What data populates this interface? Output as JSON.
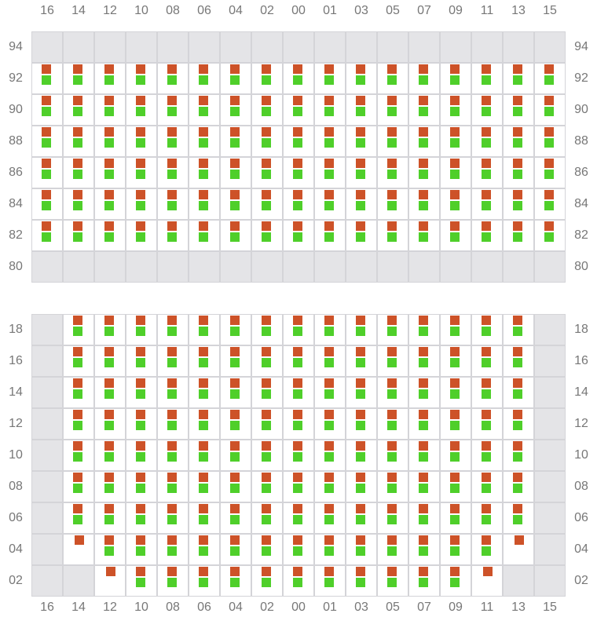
{
  "columns": [
    "16",
    "14",
    "12",
    "10",
    "08",
    "06",
    "04",
    "02",
    "00",
    "01",
    "03",
    "05",
    "07",
    "09",
    "11",
    "13",
    "15"
  ],
  "legend_codes": {
    "x": "unavailable",
    "b": "orange and green",
    "o": "orange only"
  },
  "colors": {
    "orange": "#cd5228",
    "green": "#4fcf2a",
    "unavailable": "#e4e4e7",
    "border": "#d4d4d8"
  },
  "sections": [
    {
      "rows": [
        {
          "label": "94",
          "cells": "xxxxxxxxxxxxxxxxx"
        },
        {
          "label": "92",
          "cells": "bbbbbbbbbbbbbbbbb"
        },
        {
          "label": "90",
          "cells": "bbbbbbbbbbbbbbbbb"
        },
        {
          "label": "88",
          "cells": "bbbbbbbbbbbbbbbbb"
        },
        {
          "label": "86",
          "cells": "bbbbbbbbbbbbbbbbb"
        },
        {
          "label": "84",
          "cells": "bbbbbbbbbbbbbbbbb"
        },
        {
          "label": "82",
          "cells": "bbbbbbbbbbbbbbbbb"
        },
        {
          "label": "80",
          "cells": "xxxxxxxxxxxxxxxxx"
        }
      ]
    },
    {
      "rows": [
        {
          "label": "18",
          "cells": "xbbbbbbbbbbbbbbbx"
        },
        {
          "label": "16",
          "cells": "xbbbbbbbbbbbbbbbx"
        },
        {
          "label": "14",
          "cells": "xbbbbbbbbbbbbbbbx"
        },
        {
          "label": "12",
          "cells": "xbbbbbbbbbbbbbbbx"
        },
        {
          "label": "10",
          "cells": "xbbbbbbbbbbbbbbbx"
        },
        {
          "label": "08",
          "cells": "xbbbbbbbbbbbbbbbx"
        },
        {
          "label": "06",
          "cells": "xbbbbbbbbbbbbbbbx"
        },
        {
          "label": "04",
          "cells": "xobbbbbbbbbbbbbox"
        },
        {
          "label": "02",
          "cells": "xxobbbbbbbbbbboxx"
        }
      ]
    }
  ]
}
